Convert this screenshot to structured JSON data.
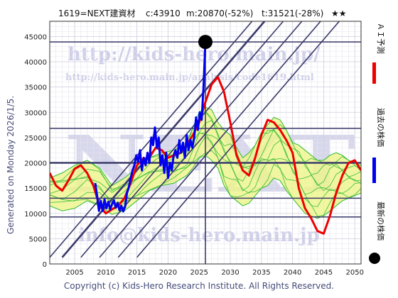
{
  "header": {
    "ticker": "1619=NEXT建資材",
    "close": "c:43910",
    "m": "m:20870(-52%)",
    "t": "t:31521(-28%)",
    "stars": "★★"
  },
  "side_note": "Generated on Monday 2026/1/5.",
  "copyright": "Copyright (c) Kids-Hero Research Institute. All Rights Reserved.",
  "watermarks": {
    "url1": "http://kids-hero.main.jp/",
    "url2": "http://kids-hero.main.jp/analysis/code1619.html",
    "big": "NEXT",
    "email": "info@kids-hero.main.jp"
  },
  "legend": {
    "ai": "ＡＩ予測",
    "past": "過去の株価",
    "latest": "最新の株価"
  },
  "colors": {
    "past_line": "#0000ee",
    "ai_line": "#ee0000",
    "forecast_band": "#eef58a",
    "forecast_lines": "#33bb33",
    "level_lines": "#3a3a6a",
    "trend_lines": "#3a3a6a",
    "latest_marker": "#000000"
  },
  "chart_data": {
    "type": "line",
    "xlim": [
      2001,
      2051
    ],
    "ylim": [
      0,
      48000
    ],
    "x_ticks": [
      2005,
      2010,
      2015,
      2020,
      2025,
      2030,
      2035,
      2040,
      2045,
      2050
    ],
    "y_ticks": [
      0,
      5000,
      10000,
      15000,
      20000,
      25000,
      30000,
      35000,
      40000,
      45000
    ],
    "grid": true,
    "horizontal_levels": [
      43910,
      26800,
      20000,
      13000,
      9300
    ],
    "vertical_marker_x": 2026,
    "latest": {
      "x": 2026,
      "y": 43910
    },
    "series": [
      {
        "key": "past",
        "x": [
          2008.3,
          2008.6,
          2008.9,
          2009.2,
          2009.5,
          2009.8,
          2010.1,
          2010.4,
          2010.7,
          2011.0,
          2011.3,
          2011.6,
          2011.9,
          2012.2,
          2012.5,
          2012.8,
          2013.1,
          2013.4,
          2013.7,
          2014.0,
          2014.3,
          2014.6,
          2014.9,
          2015.2,
          2015.5,
          2015.8,
          2016.1,
          2016.4,
          2016.7,
          2017.0,
          2017.3,
          2017.6,
          2017.9,
          2018.2,
          2018.5,
          2018.8,
          2019.1,
          2019.4,
          2019.7,
          2020.0,
          2020.3,
          2020.6,
          2020.9,
          2021.2,
          2021.5,
          2021.8,
          2022.1,
          2022.4,
          2022.7,
          2023.0,
          2023.3,
          2023.6,
          2023.9,
          2024.2,
          2024.5,
          2024.8,
          2025.1,
          2025.4,
          2025.7,
          2026.0
        ],
        "y": [
          16000,
          13500,
          10500,
          12500,
          10500,
          12800,
          11000,
          12300,
          10800,
          11800,
          12600,
          11100,
          12100,
          10600,
          11500,
          10400,
          11300,
          14000,
          15200,
          17000,
          18500,
          19500,
          21500,
          20200,
          22500,
          18500,
          21000,
          19500,
          22000,
          20000,
          25000,
          23500,
          27000,
          23000,
          25000,
          19500,
          21500,
          18000,
          22000,
          17000,
          20000,
          18500,
          21500,
          22500,
          21000,
          24500,
          22000,
          24000,
          21000,
          25500,
          22500,
          24500,
          23000,
          25000,
          29000,
          26500,
          30000,
          28500,
          35000,
          43910
        ]
      },
      {
        "key": "ai",
        "x": [
          2001,
          2002,
          2003,
          2004,
          2005,
          2006,
          2007,
          2008,
          2009,
          2010,
          2011,
          2012,
          2013,
          2014,
          2015,
          2016,
          2017,
          2018,
          2019,
          2020,
          2021,
          2022,
          2023,
          2024,
          2025,
          2026,
          2027,
          2028,
          2029,
          2030,
          2031,
          2032,
          2033,
          2034,
          2035,
          2036,
          2037,
          2038,
          2039,
          2040,
          2041,
          2042,
          2043,
          2044,
          2045,
          2046,
          2047,
          2048,
          2049,
          2050,
          2051
        ],
        "y": [
          18000,
          15500,
          14500,
          16500,
          18800,
          19500,
          18000,
          15500,
          11500,
          10000,
          10800,
          11500,
          13000,
          16000,
          19500,
          20800,
          21000,
          23000,
          22500,
          21000,
          21500,
          22000,
          23500,
          25500,
          28000,
          32000,
          35500,
          37000,
          34000,
          28000,
          21500,
          18500,
          17500,
          21000,
          25500,
          28500,
          28000,
          26500,
          24500,
          22000,
          15000,
          11000,
          9000,
          6500,
          6000,
          9500,
          14000,
          17500,
          20000,
          20500,
          18500
        ]
      },
      {
        "key": "band_upper",
        "x": [
          2001,
          2003,
          2005,
          2007,
          2009,
          2011,
          2013,
          2015,
          2017,
          2019,
          2021,
          2023,
          2024,
          2025,
          2026,
          2027,
          2028,
          2029,
          2030,
          2031,
          2032,
          2033,
          2034,
          2035,
          2036,
          2037,
          2038,
          2039,
          2040,
          2041,
          2042,
          2043,
          2044,
          2045,
          2046,
          2047,
          2048,
          2049,
          2050,
          2051
        ],
        "y": [
          17000,
          18000,
          19500,
          20500,
          19000,
          15500,
          17000,
          19000,
          21000,
          22000,
          22500,
          24000,
          27000,
          30000,
          31000,
          30500,
          28000,
          26500,
          25500,
          23000,
          21000,
          22000,
          23500,
          26000,
          27500,
          29000,
          28500,
          26500,
          24000,
          23500,
          22500,
          21500,
          20500,
          20500,
          21500,
          22000,
          21500,
          20500,
          20000,
          19500
        ]
      },
      {
        "key": "band_lower",
        "x": [
          2001,
          2003,
          2005,
          2007,
          2009,
          2011,
          2013,
          2015,
          2017,
          2019,
          2021,
          2023,
          2024,
          2025,
          2026,
          2027,
          2028,
          2029,
          2030,
          2031,
          2032,
          2033,
          2034,
          2035,
          2036,
          2037,
          2038,
          2039,
          2040,
          2041,
          2042,
          2043,
          2044,
          2045,
          2046,
          2047,
          2048,
          2049,
          2050,
          2051
        ],
        "y": [
          11500,
          10500,
          11000,
          12500,
          11500,
          9800,
          10500,
          12500,
          14500,
          15500,
          16000,
          17500,
          19000,
          21000,
          21500,
          20500,
          19000,
          15500,
          13500,
          12500,
          11500,
          12000,
          13500,
          15000,
          15500,
          17000,
          16500,
          14500,
          13000,
          11500,
          10000,
          9500,
          9000,
          9500,
          10500,
          11500,
          12500,
          13000,
          13500,
          14000
        ]
      }
    ],
    "trend_lines": [
      {
        "x": [
          2001,
          2033.5
        ],
        "y": [
          1300,
          48000
        ]
      },
      {
        "x": [
          2003,
          2035.5
        ],
        "y": [
          1300,
          48000
        ]
      },
      {
        "x": [
          2006,
          2038.5
        ],
        "y": [
          1300,
          48000
        ]
      },
      {
        "x": [
          2009,
          2041.5
        ],
        "y": [
          1300,
          48000
        ]
      },
      {
        "x": [
          2012,
          2044.5
        ],
        "y": [
          1300,
          48000
        ]
      },
      {
        "x": [
          2015,
          2047.5
        ],
        "y": [
          1300,
          48000
        ]
      }
    ]
  }
}
